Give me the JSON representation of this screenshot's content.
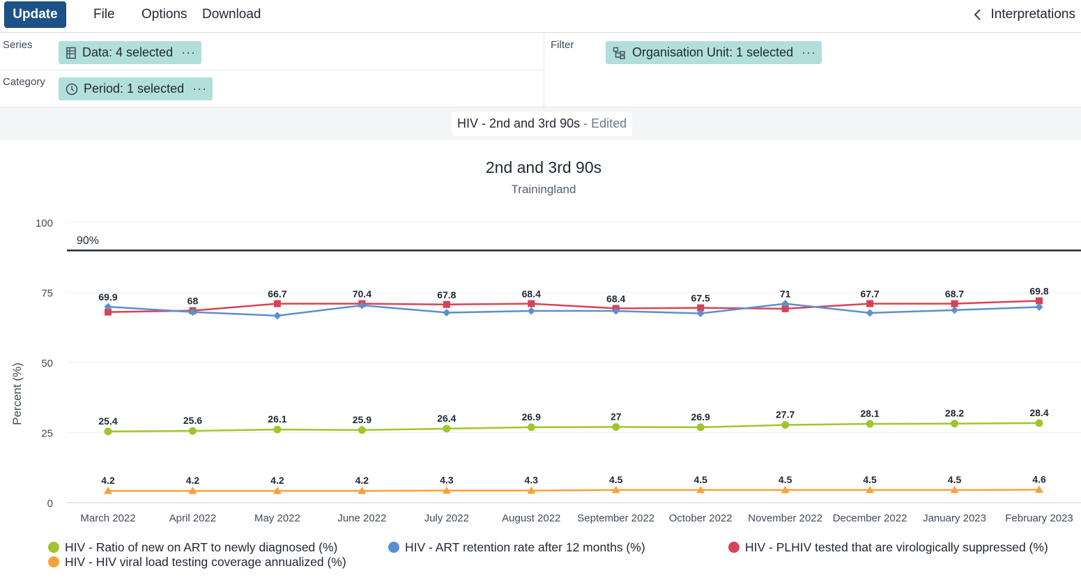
{
  "menubar": {
    "update_label": "Update",
    "file_label": "File",
    "options_label": "Options",
    "download_label": "Download",
    "interpretations_label": "Interpretations"
  },
  "layout": {
    "series_label": "Series",
    "category_label": "Category",
    "filter_label": "Filter",
    "data_chip": "Data: 4 selected",
    "period_chip": "Period: 1 selected",
    "orgunit_chip": "Organisation Unit: 1 selected",
    "chip_more": "···"
  },
  "titlebar": {
    "name": "HIV - 2nd and 3rd 90s",
    "status": "- Edited"
  },
  "colors": {
    "update_button": "#1d5288",
    "chip": "#b2dfdb",
    "green": "#a1c52e",
    "blue": "#5b8fcd",
    "red": "#d64357",
    "orange": "#f8a23a"
  },
  "chart_data": {
    "type": "line",
    "title": "2nd and 3rd 90s",
    "subtitle": "Trainingland",
    "ylabel": "Percent (%)",
    "ylim": [
      0,
      100
    ],
    "yticks": [
      0,
      25,
      50,
      75,
      100
    ],
    "target_line": {
      "value": 90,
      "label": "90%"
    },
    "categories": [
      "March 2022",
      "April 2022",
      "May 2022",
      "June 2022",
      "July 2022",
      "August 2022",
      "September 2022",
      "October 2022",
      "November 2022",
      "December 2022",
      "January 2023",
      "February 2023"
    ],
    "series": [
      {
        "name": "HIV - Ratio of new on ART to newly diagnosed (%)",
        "color": "#a1c52e",
        "marker": "circle",
        "values": [
          25.4,
          25.6,
          26.1,
          25.9,
          26.4,
          26.9,
          27,
          26.9,
          27.7,
          28.1,
          28.2,
          28.4
        ]
      },
      {
        "name": "HIV - ART retention rate after 12 months (%)",
        "color": "#5b8fcd",
        "marker": "diamond",
        "values": [
          69.9,
          68,
          66.7,
          70.4,
          67.8,
          68.4,
          68.4,
          67.5,
          71,
          67.7,
          68.7,
          69.8
        ]
      },
      {
        "name": "HIV - PLHIV tested that are virologically suppressed (%)",
        "color": "#d64357",
        "marker": "square",
        "values": [
          68,
          68.5,
          71,
          71,
          70.7,
          71,
          69.3,
          69.5,
          69.2,
          71,
          71,
          72
        ]
      },
      {
        "name": "HIV - HIV viral load testing coverage annualized (%)",
        "color": "#f8a23a",
        "marker": "triangle",
        "values": [
          4.2,
          4.2,
          4.2,
          4.2,
          4.3,
          4.3,
          4.5,
          4.5,
          4.5,
          4.5,
          4.5,
          4.6
        ]
      }
    ],
    "labeled_series": [
      0,
      1,
      3
    ],
    "legend_position": "bottom"
  }
}
